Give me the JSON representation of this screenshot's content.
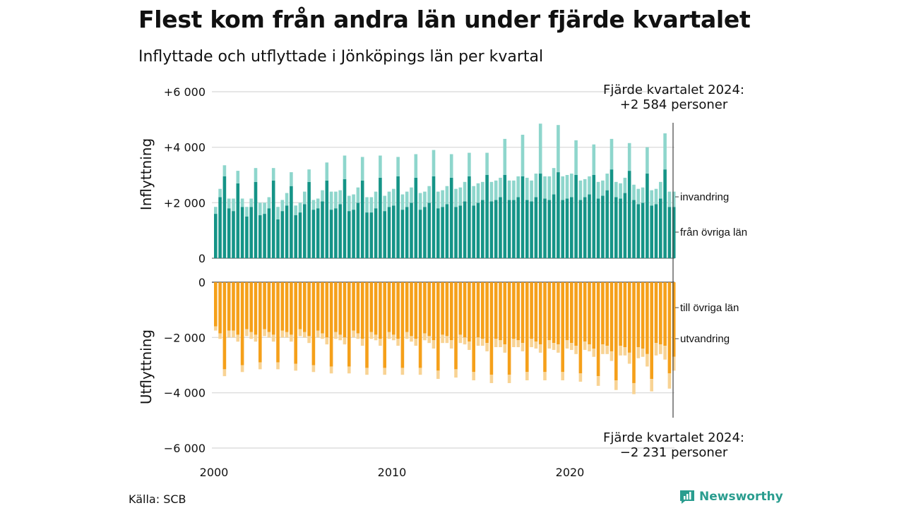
{
  "title": "Flest kom från andra län under fjärde kvartalet",
  "subtitle": "Inflyttade och utflyttade i Jönköpings län per kvartal",
  "source": "Källa: SCB",
  "brand": "Newsworthy",
  "colors": {
    "in_domestic": "#159487",
    "in_immigration": "#8ed6cc",
    "out_domestic": "#f5a01a",
    "out_emigration": "#f8d394",
    "grid": "#dddddd"
  },
  "chart_data": {
    "type": "bar",
    "stacked": true,
    "x_start": "2000 Q1",
    "x_ticks": [
      "2000",
      "2010",
      "2020"
    ],
    "top_panel": {
      "axis_title": "Inflyttning",
      "ylim": [
        0,
        6000
      ],
      "y_ticks": [
        "0",
        "+2 000",
        "+4 000",
        "+6 000"
      ],
      "series": [
        {
          "name": "från övriga län",
          "values": [
            1600,
            2200,
            2950,
            1800,
            1700,
            2700,
            1850,
            1500,
            1850,
            2750,
            1550,
            1600,
            1800,
            2800,
            1400,
            1700,
            1900,
            2600,
            1550,
            1650,
            1950,
            2750,
            1750,
            1800,
            2050,
            2800,
            1750,
            1800,
            1950,
            2850,
            1700,
            1750,
            2000,
            2800,
            1650,
            1650,
            1800,
            2900,
            1700,
            1850,
            1900,
            2950,
            1750,
            1850,
            2000,
            2900,
            1750,
            1850,
            2000,
            2950,
            1800,
            1850,
            1950,
            2900,
            1850,
            1900,
            2050,
            2950,
            1900,
            2000,
            2100,
            3000,
            2050,
            2100,
            2200,
            3000,
            2100,
            2100,
            2200,
            2950,
            2100,
            2050,
            2200,
            3050,
            2150,
            2100,
            2300,
            3100,
            2100,
            2150,
            2200,
            3000,
            2100,
            2200,
            2300,
            3000,
            2150,
            2250,
            2450,
            3200,
            2200,
            2150,
            2350,
            3150,
            2100,
            1950,
            2000,
            3050,
            1900,
            1950,
            2150,
            3200,
            1850,
            1850
          ]
        },
        {
          "name": "invandring",
          "values": [
            250,
            300,
            400,
            350,
            450,
            450,
            300,
            350,
            300,
            500,
            450,
            400,
            400,
            450,
            450,
            400,
            450,
            500,
            350,
            350,
            450,
            450,
            350,
            350,
            400,
            650,
            650,
            600,
            500,
            850,
            550,
            550,
            550,
            850,
            550,
            550,
            600,
            800,
            550,
            550,
            600,
            700,
            550,
            550,
            550,
            850,
            600,
            550,
            600,
            950,
            600,
            600,
            650,
            850,
            650,
            650,
            700,
            850,
            700,
            700,
            650,
            800,
            700,
            700,
            700,
            1300,
            700,
            700,
            750,
            1500,
            800,
            750,
            850,
            1800,
            800,
            850,
            950,
            1700,
            850,
            850,
            850,
            1250,
            700,
            650,
            650,
            1100,
            600,
            550,
            600,
            1100,
            550,
            550,
            550,
            1000,
            550,
            550,
            550,
            950,
            550,
            550,
            600,
            1300,
            550,
            550
          ]
        }
      ]
    },
    "bottom_panel": {
      "axis_title": "Utflyttning",
      "ylim": [
        -6000,
        0
      ],
      "y_ticks": [
        "0",
        "−2 000",
        "−4 000",
        "−6 000"
      ],
      "series": [
        {
          "name": "till övriga län",
          "values": [
            -1600,
            -1850,
            -3150,
            -1750,
            -1750,
            -1900,
            -3000,
            -1700,
            -1800,
            -1900,
            -2900,
            -1700,
            -1800,
            -1900,
            -2900,
            -1750,
            -1800,
            -1900,
            -2950,
            -1700,
            -1800,
            -1950,
            -3000,
            -1750,
            -1850,
            -2000,
            -3050,
            -1800,
            -1900,
            -2000,
            -3050,
            -1750,
            -1850,
            -2050,
            -3100,
            -1800,
            -1900,
            -2050,
            -3100,
            -1800,
            -1900,
            -2050,
            -3100,
            -1800,
            -1950,
            -2050,
            -3100,
            -1850,
            -1950,
            -2100,
            -3200,
            -1900,
            -1950,
            -2100,
            -3150,
            -1900,
            -2000,
            -2150,
            -3250,
            -2000,
            -2050,
            -2200,
            -3350,
            -2050,
            -2100,
            -2250,
            -3350,
            -2050,
            -2100,
            -2200,
            -3250,
            -2050,
            -2150,
            -2250,
            -3250,
            -2100,
            -2200,
            -2250,
            -3250,
            -2100,
            -2200,
            -2300,
            -3300,
            -2150,
            -2250,
            -2400,
            -3400,
            -2250,
            -2300,
            -2500,
            -3550,
            -2300,
            -2350,
            -2550,
            -3650,
            -2350,
            -2400,
            -2600,
            -3500,
            -2200,
            -2250,
            -2300,
            -3300,
            -2700
          ]
        },
        {
          "name": "utvandring",
          "values": [
            -150,
            -200,
            -250,
            -250,
            -250,
            -250,
            -250,
            -250,
            -250,
            -250,
            -250,
            -250,
            -200,
            -250,
            -250,
            -250,
            -200,
            -250,
            -250,
            -250,
            -200,
            -250,
            -250,
            -250,
            -200,
            -250,
            -250,
            -250,
            -200,
            -250,
            -250,
            -250,
            -200,
            -250,
            -250,
            -250,
            -200,
            -250,
            -250,
            -250,
            -200,
            -250,
            -250,
            -250,
            -200,
            -250,
            -250,
            -250,
            -250,
            -300,
            -300,
            -300,
            -250,
            -300,
            -300,
            -300,
            -250,
            -300,
            -300,
            -300,
            -250,
            -300,
            -300,
            -300,
            -250,
            -300,
            -300,
            -300,
            -250,
            -300,
            -300,
            -300,
            -250,
            -300,
            -300,
            -300,
            -250,
            -300,
            -300,
            -300,
            -250,
            -300,
            -300,
            -300,
            -250,
            -300,
            -350,
            -350,
            -300,
            -350,
            -350,
            -350,
            -300,
            -400,
            -400,
            -400,
            -300,
            -450,
            -450,
            -450,
            -350,
            -500,
            -550,
            -500
          ]
        }
      ]
    },
    "annotations": {
      "top_line1": "Fjärde kvartalet 2024:",
      "top_line2": "+2 584 personer",
      "bottom_line1": "Fjärde kvartalet 2024:",
      "bottom_line2": "−2 231 personer"
    }
  }
}
